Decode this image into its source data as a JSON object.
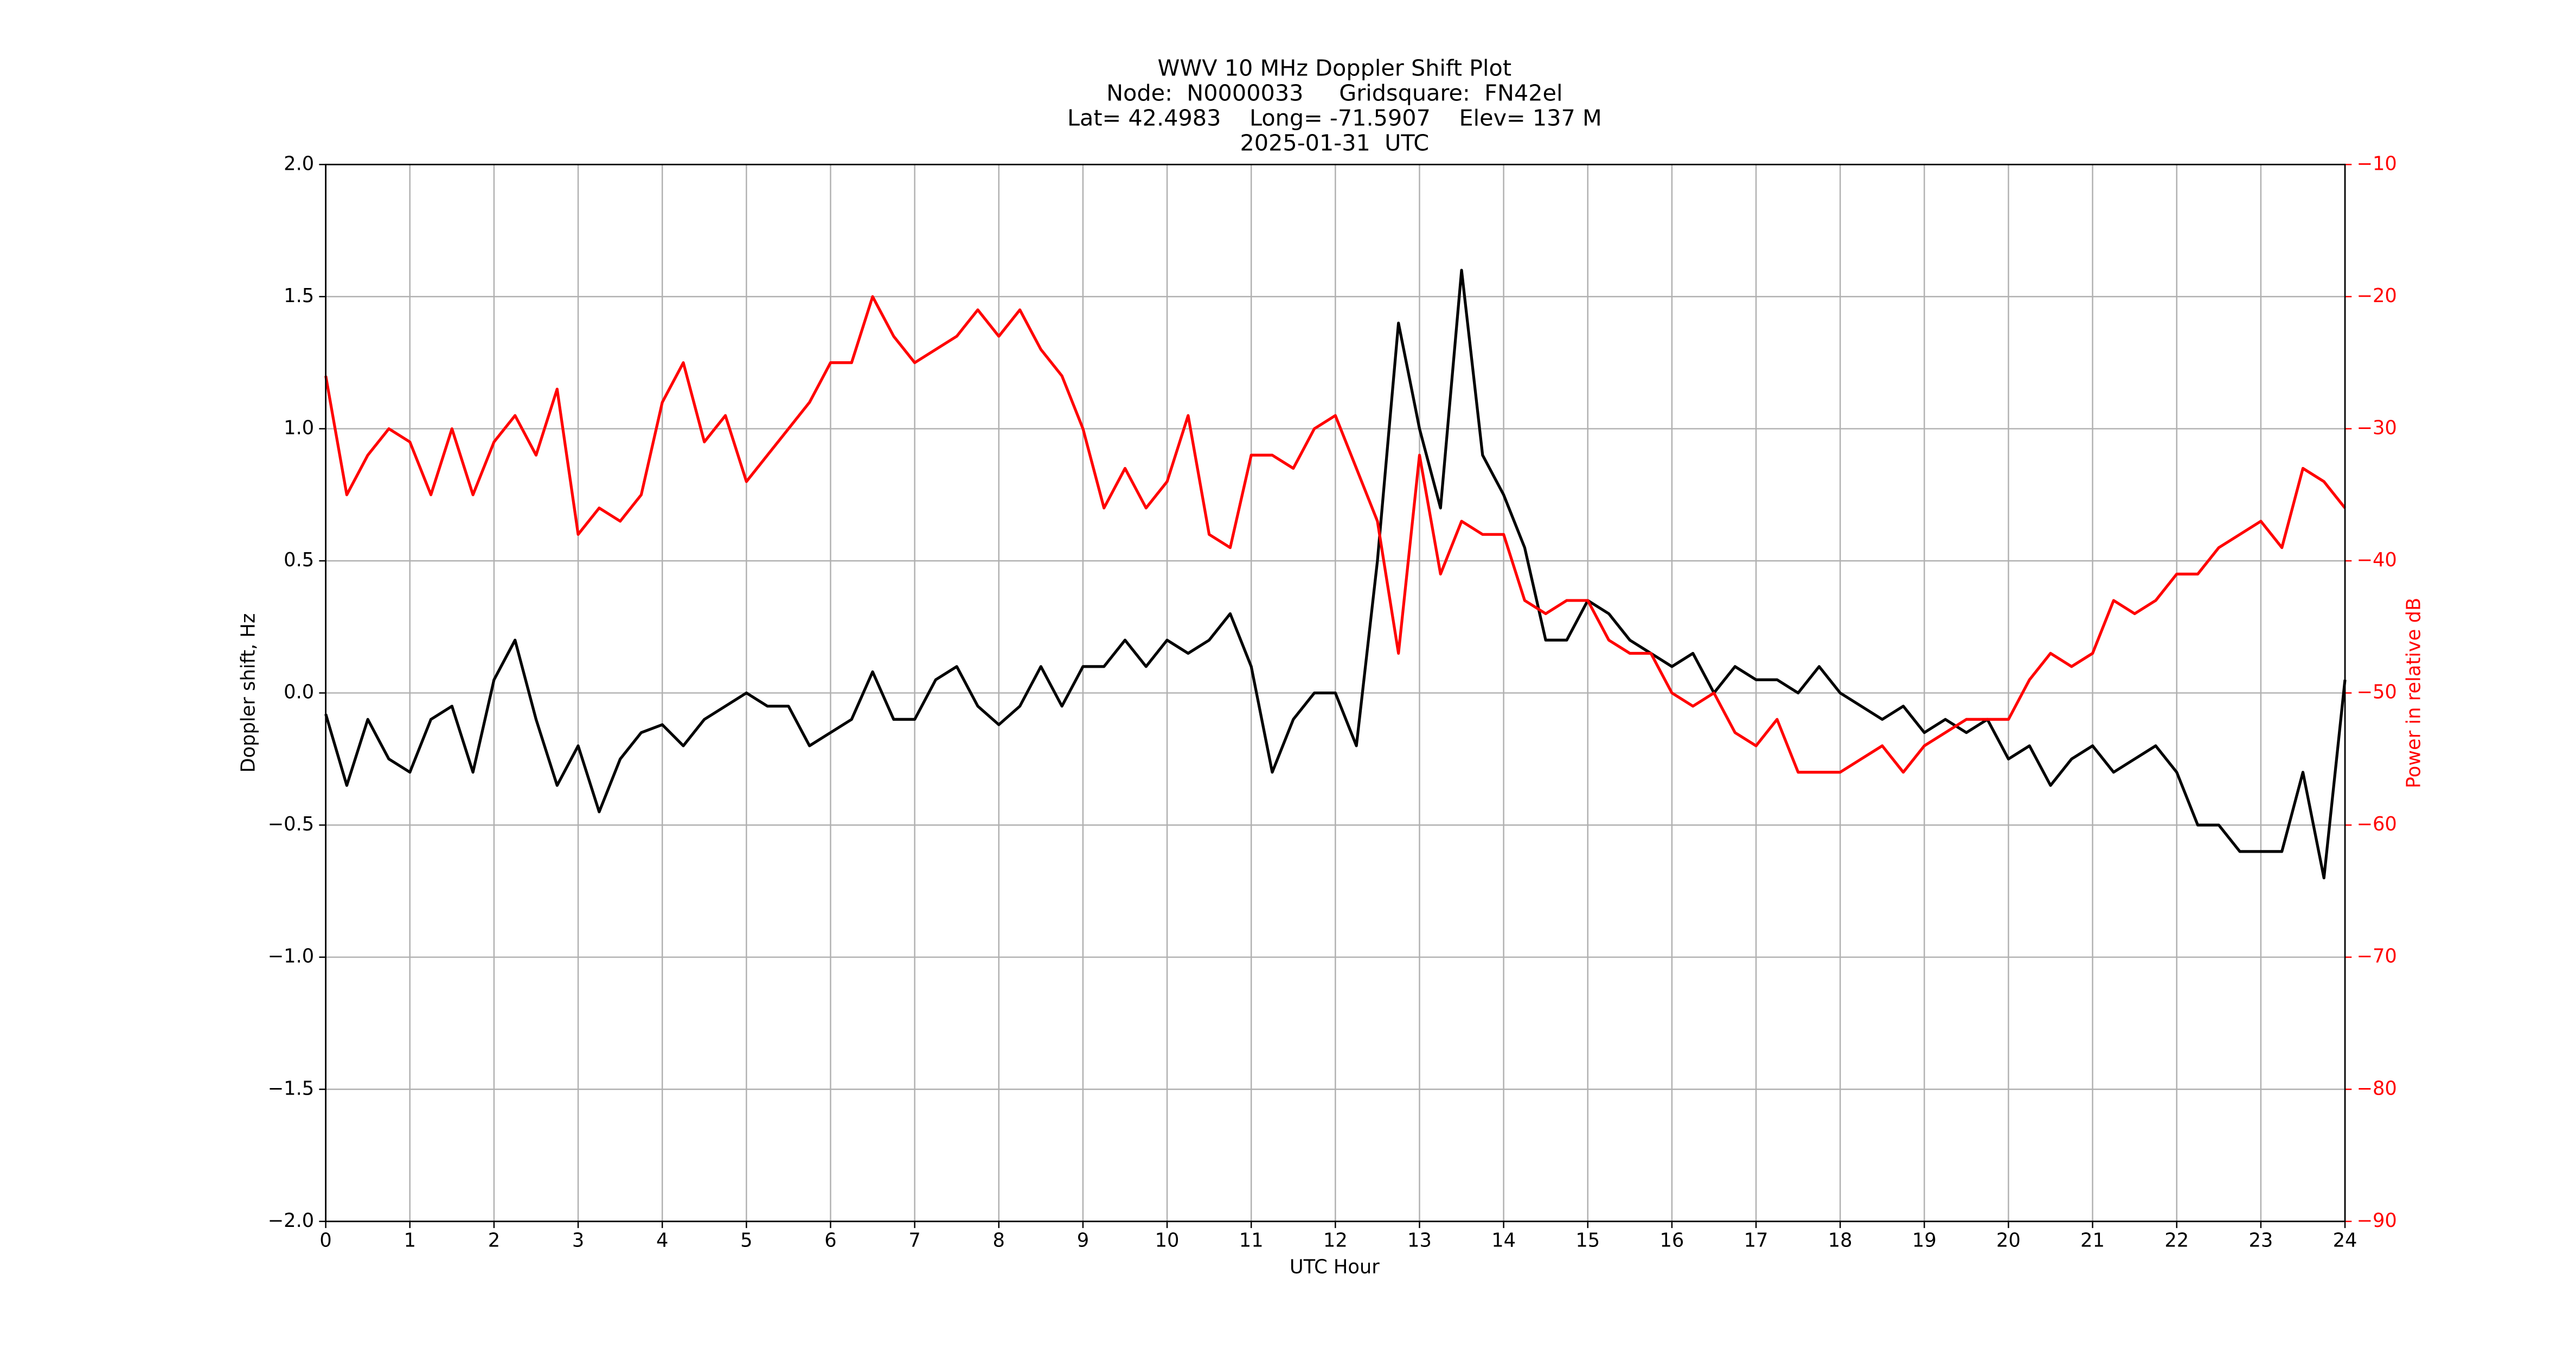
{
  "chart_data": {
    "type": "line",
    "title": "WWV 10 MHz Doppler Shift Plot",
    "subtitle": [
      "Node:  N0000033     Gridsquare:  FN42el",
      "Lat= 42.4983    Long= -71.5907    Elev= 137 M",
      "2025-01-31  UTC"
    ],
    "xlabel": "UTC Hour",
    "ylabel": "Doppler shift, Hz",
    "y2label": "Power in relative dB",
    "grid": true,
    "xlim": [
      0,
      24
    ],
    "xticks": [
      0,
      1,
      2,
      3,
      4,
      5,
      6,
      7,
      8,
      9,
      10,
      11,
      12,
      13,
      14,
      15,
      16,
      17,
      18,
      19,
      20,
      21,
      22,
      23,
      24
    ],
    "ylim": [
      -2,
      2
    ],
    "yticks": [
      {
        "value": -2,
        "label": "−2.0"
      },
      {
        "value": -1.5,
        "label": "−1.5"
      },
      {
        "value": -1,
        "label": "−1.0"
      },
      {
        "value": -0.5,
        "label": "−0.5"
      },
      {
        "value": 0,
        "label": "0.0"
      },
      {
        "value": 0.5,
        "label": "0.5"
      },
      {
        "value": 1,
        "label": "1.0"
      },
      {
        "value": 1.5,
        "label": "1.5"
      },
      {
        "value": 2,
        "label": "2.0"
      }
    ],
    "y2lim": [
      -90,
      -10
    ],
    "y2ticks": [
      {
        "value": -90,
        "label": "−90"
      },
      {
        "value": -80,
        "label": "−80"
      },
      {
        "value": -70,
        "label": "−70"
      },
      {
        "value": -60,
        "label": "−60"
      },
      {
        "value": -50,
        "label": "−50"
      },
      {
        "value": -40,
        "label": "−40"
      },
      {
        "value": -30,
        "label": "−30"
      },
      {
        "value": -20,
        "label": "−20"
      },
      {
        "value": -10,
        "label": "−10"
      }
    ],
    "x": [
      0,
      0.25,
      0.5,
      0.75,
      1,
      1.25,
      1.5,
      1.75,
      2,
      2.25,
      2.5,
      2.75,
      3,
      3.25,
      3.5,
      3.75,
      4,
      4.25,
      4.5,
      4.75,
      5,
      5.25,
      5.5,
      5.75,
      6,
      6.25,
      6.5,
      6.75,
      7,
      7.25,
      7.5,
      7.75,
      8,
      8.25,
      8.5,
      8.75,
      9,
      9.25,
      9.5,
      9.75,
      10,
      10.25,
      10.5,
      10.75,
      11,
      11.25,
      11.5,
      11.75,
      12,
      12.25,
      12.5,
      12.75,
      13,
      13.25,
      13.5,
      13.75,
      14,
      14.25,
      14.5,
      14.75,
      15,
      15.25,
      15.5,
      15.75,
      16,
      16.25,
      16.5,
      16.75,
      17,
      17.25,
      17.5,
      17.75,
      18,
      18.25,
      18.5,
      18.75,
      19,
      19.25,
      19.5,
      19.75,
      20,
      20.25,
      20.5,
      20.75,
      21,
      21.25,
      21.5,
      21.75,
      22,
      22.25,
      22.5,
      22.75,
      23,
      23.25,
      23.5,
      23.75,
      24
    ],
    "series": [
      {
        "name": "Doppler shift",
        "color": "#000000",
        "values": [
          -0.08,
          -0.35,
          -0.1,
          -0.25,
          -0.3,
          -0.1,
          -0.05,
          -0.3,
          0.05,
          0.2,
          -0.1,
          -0.35,
          -0.2,
          -0.45,
          -0.25,
          -0.15,
          -0.12,
          -0.2,
          -0.1,
          -0.05,
          0,
          -0.05,
          -0.05,
          -0.2,
          -0.15,
          -0.1,
          0.08,
          -0.1,
          -0.1,
          0.05,
          0.1,
          -0.05,
          -0.12,
          -0.05,
          0.1,
          -0.05,
          0.1,
          0.1,
          0.2,
          0.1,
          0.2,
          0.15,
          0.2,
          0.3,
          0.1,
          -0.3,
          -0.1,
          0,
          0,
          -0.2,
          0.5,
          1.4,
          1,
          0.7,
          1.6,
          0.9,
          0.75,
          0.55,
          0.2,
          0.2,
          0.35,
          0.3,
          0.2,
          0.15,
          0.1,
          0.15,
          0,
          0.1,
          0.05,
          0.05,
          0,
          0.1,
          0,
          -0.05,
          -0.1,
          -0.05,
          -0.15,
          -0.1,
          -0.15,
          -0.1,
          -0.25,
          -0.2,
          -0.35,
          -0.25,
          -0.2,
          -0.3,
          -0.25,
          -0.2,
          -0.3,
          -0.5,
          -0.5,
          -0.6,
          -0.6,
          -0.6,
          -0.3,
          -0.7,
          0.05
        ]
      },
      {
        "name": "Power",
        "color": "#ff0000",
        "axis": "y2",
        "values": [
          -26,
          -35,
          -32,
          -30,
          -31,
          -35,
          -30,
          -35,
          -31,
          -29,
          -32,
          -27,
          -38,
          -36,
          -37,
          -35,
          -28,
          -25,
          -31,
          -29,
          -34,
          -32,
          -30,
          -28,
          -25,
          -25,
          -20,
          -23,
          -25,
          -24,
          -23,
          -21,
          -23,
          -21,
          -24,
          -26,
          -30,
          -36,
          -33,
          -36,
          -34,
          -29,
          -38,
          -39,
          -32,
          -32,
          -33,
          -30,
          -29,
          -33,
          -37,
          -47,
          -32,
          -41,
          -37,
          -38,
          -38,
          -43,
          -44,
          -43,
          -43,
          -46,
          -47,
          -47,
          -50,
          -51,
          -50,
          -53,
          -54,
          -52,
          -56,
          -56,
          -56,
          -55,
          -54,
          -56,
          -54,
          -53,
          -52,
          -52,
          -52,
          -49,
          -47,
          -48,
          -47,
          -43,
          -44,
          -43,
          -41,
          -41,
          -39,
          -38,
          -37,
          -39,
          -33,
          -34,
          -36
        ]
      }
    ]
  }
}
